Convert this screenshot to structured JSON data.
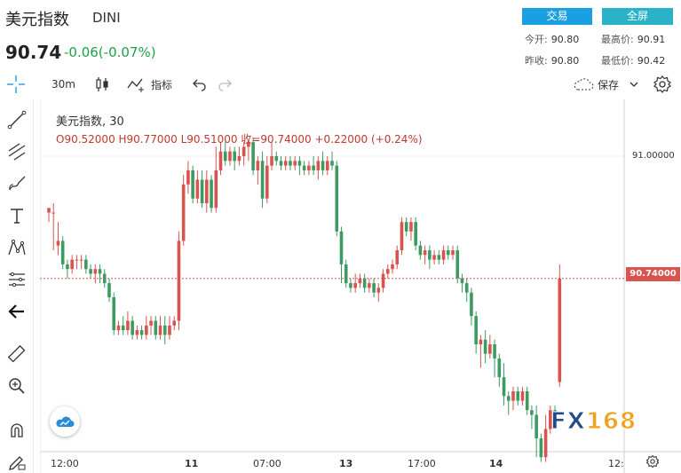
{
  "header": {
    "title": "美元指数",
    "symbol": "DINI",
    "price": "90.74",
    "change": "-0.06(-0.07%)",
    "trade_label": "交易",
    "fullscreen_label": "全屏",
    "stats": {
      "open_label": "今开:",
      "open": "90.80",
      "high_label": "最高价:",
      "high": "90.91",
      "prev_label": "昨收:",
      "prev": "90.80",
      "low_label": "最低价:",
      "low": "90.42"
    }
  },
  "toolbar": {
    "interval": "30m",
    "indicators_label": "指标",
    "save_label": "保存"
  },
  "legend": {
    "name": "美元指数, 30",
    "ohlc": "O90.52000  H90.77000  L90.51000  收=90.74000  +0.22000 (+0.24%)"
  },
  "price_axis": {
    "labels": [
      "91.00000"
    ],
    "current": "90.74000"
  },
  "time_axis": {
    "labels": [
      "12:00",
      "11",
      "07:00",
      "13",
      "17:00",
      "14",
      "12:"
    ]
  },
  "watermark": {
    "fx": "FX",
    "num": "168"
  },
  "colors": {
    "up": "#d9534f",
    "down": "#3c9a62",
    "accent": "#1a9fe0"
  },
  "chart_data": {
    "type": "candlestick",
    "title": "美元指数, 30",
    "y_ref": {
      "price": 91.0,
      "label": "91.00000"
    },
    "current_price": 90.74,
    "candles": [
      [
        90.88,
        90.89,
        90.88,
        90.86
      ],
      [
        90.88,
        90.88,
        90.9,
        90.8
      ],
      [
        90.81,
        90.82,
        90.86,
        90.79
      ],
      [
        90.82,
        90.77,
        90.83,
        90.76
      ],
      [
        90.77,
        90.76,
        90.78,
        90.74
      ],
      [
        90.76,
        90.78,
        90.79,
        90.75
      ],
      [
        90.78,
        90.78,
        90.79,
        90.76
      ],
      [
        90.78,
        90.78,
        90.79,
        90.76
      ],
      [
        90.78,
        90.76,
        90.79,
        90.75
      ],
      [
        90.76,
        90.75,
        90.77,
        90.74
      ],
      [
        90.75,
        90.76,
        90.77,
        90.73
      ],
      [
        90.76,
        90.75,
        90.77,
        90.73
      ],
      [
        90.75,
        90.73,
        90.76,
        90.72
      ],
      [
        90.73,
        90.7,
        90.74,
        90.69
      ],
      [
        90.7,
        90.63,
        90.71,
        90.62
      ],
      [
        90.63,
        90.64,
        90.65,
        90.62
      ],
      [
        90.64,
        90.63,
        90.66,
        90.62
      ],
      [
        90.63,
        90.65,
        90.67,
        90.62
      ],
      [
        90.65,
        90.62,
        90.66,
        90.61
      ],
      [
        90.62,
        90.63,
        90.64,
        90.61
      ],
      [
        90.63,
        90.62,
        90.64,
        90.61
      ],
      [
        90.62,
        90.64,
        90.66,
        90.61
      ],
      [
        90.64,
        90.65,
        90.66,
        90.62
      ],
      [
        90.65,
        90.62,
        90.66,
        90.61
      ],
      [
        90.62,
        90.64,
        90.66,
        90.61
      ],
      [
        90.64,
        90.62,
        90.66,
        90.6
      ],
      [
        90.62,
        90.64,
        90.66,
        90.61
      ],
      [
        90.64,
        90.65,
        90.66,
        90.63
      ],
      [
        90.65,
        90.82,
        90.84,
        90.63
      ],
      [
        90.82,
        90.94,
        90.96,
        90.81
      ],
      [
        90.94,
        90.97,
        90.99,
        90.92
      ],
      [
        90.97,
        90.91,
        90.98,
        90.9
      ],
      [
        90.91,
        90.95,
        90.97,
        90.9
      ],
      [
        90.95,
        90.9,
        90.97,
        90.89
      ],
      [
        90.9,
        90.95,
        90.97,
        90.88
      ],
      [
        90.95,
        90.89,
        90.96,
        90.88
      ],
      [
        90.89,
        90.97,
        91.02,
        90.88
      ],
      [
        90.97,
        91.01,
        91.03,
        90.96
      ],
      [
        91.01,
        90.99,
        91.03,
        90.98
      ],
      [
        90.99,
        91.01,
        91.02,
        90.98
      ],
      [
        91.01,
        90.99,
        91.02,
        90.97
      ],
      [
        90.99,
        91.0,
        91.02,
        90.98
      ],
      [
        91.0,
        91.02,
        91.03,
        90.98
      ],
      [
        91.02,
        91.03,
        91.03,
        90.99
      ],
      [
        91.03,
        90.97,
        91.04,
        90.96
      ],
      [
        90.97,
        90.99,
        91.0,
        90.94
      ],
      [
        90.99,
        90.91,
        91.01,
        90.89
      ],
      [
        90.91,
        90.98,
        91.0,
        90.9
      ],
      [
        90.98,
        91.0,
        91.03,
        90.97
      ],
      [
        91.0,
        90.99,
        91.01,
        90.98
      ],
      [
        90.99,
        90.98,
        91.0,
        90.97
      ],
      [
        90.98,
        90.99,
        91.0,
        90.97
      ],
      [
        90.99,
        90.98,
        91.0,
        90.97
      ],
      [
        90.98,
        90.99,
        91.0,
        90.97
      ],
      [
        90.99,
        90.98,
        91.0,
        90.96
      ],
      [
        90.98,
        90.97,
        90.99,
        90.96
      ],
      [
        90.97,
        90.98,
        90.99,
        90.96
      ],
      [
        90.98,
        90.97,
        91.0,
        90.96
      ],
      [
        90.97,
        90.99,
        91.0,
        90.95
      ],
      [
        90.99,
        90.97,
        91.01,
        90.96
      ],
      [
        90.97,
        90.99,
        91.0,
        90.96
      ],
      [
        90.99,
        90.98,
        91.01,
        90.97
      ],
      [
        90.98,
        90.84,
        90.99,
        90.83
      ],
      [
        90.84,
        90.77,
        90.85,
        90.73
      ],
      [
        90.77,
        90.73,
        90.78,
        90.72
      ],
      [
        90.73,
        90.72,
        90.74,
        90.71
      ],
      [
        90.72,
        90.73,
        90.75,
        90.71
      ],
      [
        90.73,
        90.74,
        90.75,
        90.72
      ],
      [
        90.74,
        90.72,
        90.75,
        90.71
      ],
      [
        90.72,
        90.73,
        90.74,
        90.71
      ],
      [
        90.73,
        90.71,
        90.74,
        90.7
      ],
      [
        90.71,
        90.72,
        90.73,
        90.69
      ],
      [
        90.72,
        90.75,
        90.76,
        90.71
      ],
      [
        90.75,
        90.76,
        90.77,
        90.74
      ],
      [
        90.76,
        90.77,
        90.78,
        90.75
      ],
      [
        90.77,
        90.8,
        90.81,
        90.76
      ],
      [
        90.8,
        90.86,
        90.87,
        90.79
      ],
      [
        90.86,
        90.84,
        90.87,
        90.83
      ],
      [
        90.84,
        90.86,
        90.87,
        90.82
      ],
      [
        90.86,
        90.81,
        90.87,
        90.8
      ],
      [
        90.81,
        90.79,
        90.82,
        90.78
      ],
      [
        90.79,
        90.8,
        90.81,
        90.77
      ],
      [
        90.8,
        90.78,
        90.81,
        90.76
      ],
      [
        90.78,
        90.79,
        90.8,
        90.77
      ],
      [
        90.79,
        90.78,
        90.8,
        90.77
      ],
      [
        90.78,
        90.8,
        90.81,
        90.77
      ],
      [
        90.8,
        90.79,
        90.81,
        90.78
      ],
      [
        90.79,
        90.8,
        90.81,
        90.78
      ],
      [
        90.8,
        90.74,
        90.81,
        90.73
      ],
      [
        90.74,
        90.73,
        90.75,
        90.71
      ],
      [
        90.73,
        90.71,
        90.74,
        90.69
      ],
      [
        90.71,
        90.66,
        90.72,
        90.64
      ],
      [
        90.66,
        90.6,
        90.67,
        90.58
      ],
      [
        90.6,
        90.61,
        90.62,
        90.55
      ],
      [
        90.61,
        90.58,
        90.63,
        90.56
      ],
      [
        90.58,
        90.6,
        90.62,
        90.57
      ],
      [
        90.6,
        90.57,
        90.61,
        90.53
      ],
      [
        90.57,
        90.53,
        90.58,
        90.51
      ],
      [
        90.53,
        90.49,
        90.56,
        90.47
      ],
      [
        90.49,
        90.48,
        90.5,
        90.45
      ],
      [
        90.48,
        90.5,
        90.51,
        90.46
      ],
      [
        90.5,
        90.48,
        90.51,
        90.47
      ],
      [
        90.48,
        90.5,
        90.51,
        90.47
      ],
      [
        90.5,
        90.46,
        90.51,
        90.45
      ],
      [
        90.46,
        90.45,
        90.47,
        90.42
      ],
      [
        90.45,
        90.4,
        90.47,
        90.36
      ],
      [
        90.4,
        90.36,
        90.41,
        90.35
      ],
      [
        90.36,
        90.42,
        90.45,
        90.35
      ],
      [
        90.42,
        90.46,
        90.47,
        90.41
      ],
      [
        90.46,
        90.45,
        90.47,
        90.44
      ],
      [
        90.52,
        90.74,
        90.77,
        90.51
      ]
    ]
  }
}
